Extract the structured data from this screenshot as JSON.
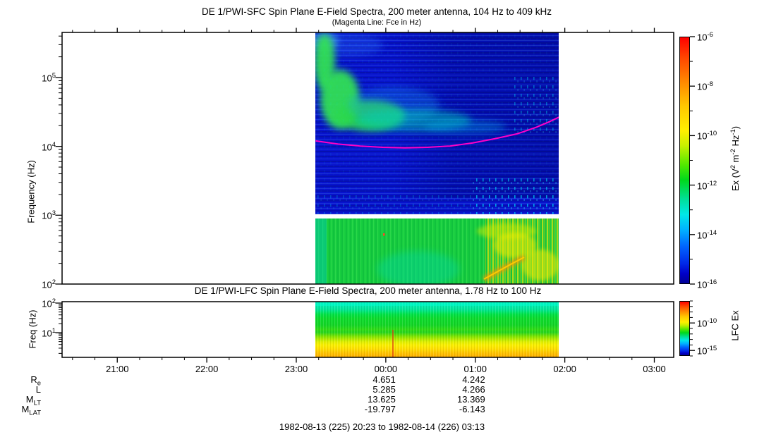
{
  "page": {
    "title": "DE 1/PWI-SFC  Spin Plane E-Field Spectra, 200 meter antenna, 104 Hz to 409 kHz",
    "subtitle": "(Magenta Line: Fce in Hz)",
    "footer": "1982-08-13 (225) 20:23 to 1982-08-14 (226) 03:13"
  },
  "chart_data": [
    {
      "type": "heatmap",
      "instrument": "DE 1/PWI-SFC",
      "title": "DE 1/PWI-SFC  Spin Plane E-Field Spectra, 200 meter antenna, 104 Hz to 409 kHz",
      "subtitle": "(Magenta Line: Fce in Hz)",
      "ylabel": "Frequency (Hz)",
      "yscale": "log",
      "ylim_hz": [
        100,
        409000
      ],
      "ytick_exponents": [
        2,
        3,
        4,
        5
      ],
      "time_start": "20:23",
      "time_end": "03:13",
      "xticks": [
        "21:00",
        "22:00",
        "23:00",
        "00:00",
        "01:00",
        "02:00",
        "03:00"
      ],
      "minor_xtick_minutes": 15,
      "data_coverage": [
        "23:13",
        "01:56"
      ],
      "colorbar": {
        "label": "Ex (V^2 m^-2 Hz^-1)",
        "scale": "log",
        "exponent_range": [
          -6,
          -16
        ],
        "labeled_exponents": [
          -6,
          -8,
          -10,
          -12,
          -14,
          -16
        ]
      },
      "fce_line": {
        "label": "Fce",
        "color": "#ff00c8",
        "points_time_hz": [
          [
            "23:13",
            12000
          ],
          [
            "23:28",
            10800
          ],
          [
            "23:43",
            10100
          ],
          [
            "23:58",
            9700
          ],
          [
            "00:13",
            9500
          ],
          [
            "00:28",
            9700
          ],
          [
            "00:43",
            10100
          ],
          [
            "00:58",
            11200
          ],
          [
            "01:13",
            12900
          ],
          [
            "01:28",
            15200
          ],
          [
            "01:41",
            19000
          ],
          [
            "01:49",
            22500
          ],
          [
            "01:56",
            26500
          ]
        ]
      },
      "features": [
        {
          "name": "continuum-enhancement",
          "desc": "Green emission descending from ~300 kHz at 23:13 to ~30 kHz by 00:30, fading right into cyan then blue",
          "color": "green"
        },
        {
          "name": "background",
          "desc": "Blue background 1-400 kHz over full data interval, darker after ~00:30 at high frequency",
          "color": "blue"
        },
        {
          "name": "cyan-bursts",
          "desc": "Cyan speckled bursts 300 Hz - 3 kHz, 01:00-01:55",
          "color": "cyan"
        },
        {
          "name": "low-band",
          "desc": "Green band 104 Hz - 800 Hz with yellow/orange intensifications 01:05-01:55",
          "color": "green-yellow"
        },
        {
          "name": "no-data",
          "desc": "White before 23:13 and after 01:56"
        }
      ]
    },
    {
      "type": "heatmap",
      "instrument": "DE 1/PWI-LFC",
      "title": "DE 1/PWI-LFC  Spin Plane E-Field Spectra, 200 meter antenna, 1.78 Hz to 100 Hz",
      "ylabel": "Freq (Hz)",
      "yscale": "log",
      "ylim_hz": [
        1.78,
        100
      ],
      "ytick_exponents": [
        1,
        2
      ],
      "data_coverage": [
        "23:13",
        "01:56"
      ],
      "colorbar": {
        "label": "LFC Ex",
        "scale": "log",
        "exponent_range": [
          -6,
          -16
        ],
        "labeled_exponents": [
          -10,
          -15
        ]
      },
      "bands": [
        {
          "freq": "30-100 Hz",
          "color": "cyan-teal"
        },
        {
          "freq": "6-30 Hz",
          "color": "green"
        },
        {
          "freq": "3-6 Hz",
          "color": "yellow"
        },
        {
          "freq": "1.78-3 Hz",
          "color": "orange"
        }
      ]
    }
  ],
  "ephemeris": {
    "row_labels": [
      "R_e",
      "L",
      "M_LT",
      "M_LAT"
    ],
    "columns": [
      {
        "time": "00:00",
        "values": [
          "4.651",
          "5.285",
          "13.625",
          "-19.797"
        ]
      },
      {
        "time": "01:00",
        "values": [
          "4.242",
          "4.266",
          "13.369",
          "-6.143"
        ]
      }
    ]
  }
}
